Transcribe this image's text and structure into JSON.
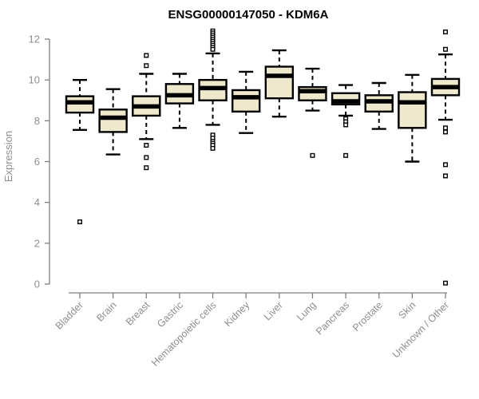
{
  "chart_data": {
    "type": "boxplot",
    "title": "ENSG00000147050 - KDM6A",
    "xlabel": "",
    "ylabel": "Expression",
    "ylim": [
      0,
      12
    ],
    "yticks": [
      0,
      2,
      4,
      6,
      8,
      10,
      12
    ],
    "grid": "off",
    "legend": "none",
    "categories": [
      "Bladder",
      "Brain",
      "Breast",
      "Gastric",
      "Hematopoietic cells",
      "Kidney",
      "Liver",
      "Lung",
      "Pancreas",
      "Prostate",
      "Skin",
      "Unknown / Other"
    ],
    "series": [
      {
        "category": "Bladder",
        "whisker_low": 7.55,
        "q1": 8.4,
        "median": 8.9,
        "q3": 9.2,
        "whisker_high": 10.0,
        "outliers": [
          3.05
        ]
      },
      {
        "category": "Brain",
        "whisker_low": 6.35,
        "q1": 7.45,
        "median": 8.15,
        "q3": 8.55,
        "whisker_high": 9.55,
        "outliers": []
      },
      {
        "category": "Breast",
        "whisker_low": 7.1,
        "q1": 8.25,
        "median": 8.7,
        "q3": 9.2,
        "whisker_high": 10.3,
        "outliers": [
          11.2,
          10.7,
          6.8,
          6.2,
          5.7
        ]
      },
      {
        "category": "Gastric",
        "whisker_low": 7.65,
        "q1": 8.85,
        "median": 9.25,
        "q3": 9.8,
        "whisker_high": 10.3,
        "outliers": []
      },
      {
        "category": "Hematopoietic cells",
        "whisker_low": 7.8,
        "q1": 9.0,
        "median": 9.6,
        "q3": 10.0,
        "whisker_high": 11.3,
        "outliers": [
          12.4,
          12.3,
          12.2,
          12.1,
          12.0,
          11.9,
          11.8,
          11.7,
          11.6,
          11.5,
          7.3,
          7.15,
          7.0,
          6.9,
          6.8,
          6.65
        ]
      },
      {
        "category": "Kidney",
        "whisker_low": 7.4,
        "q1": 8.45,
        "median": 9.15,
        "q3": 9.5,
        "whisker_high": 10.4,
        "outliers": []
      },
      {
        "category": "Liver",
        "whisker_low": 8.2,
        "q1": 9.1,
        "median": 10.2,
        "q3": 10.65,
        "whisker_high": 11.45,
        "outliers": []
      },
      {
        "category": "Lung",
        "whisker_low": 8.5,
        "q1": 9.0,
        "median": 9.45,
        "q3": 9.65,
        "whisker_high": 10.55,
        "outliers": [
          6.3
        ]
      },
      {
        "category": "Pancreas",
        "whisker_low": 8.25,
        "q1": 8.8,
        "median": 8.95,
        "q3": 9.35,
        "whisker_high": 9.75,
        "outliers": [
          8.1,
          7.95,
          7.8,
          6.3
        ]
      },
      {
        "category": "Prostate",
        "whisker_low": 7.6,
        "q1": 8.45,
        "median": 8.95,
        "q3": 9.25,
        "whisker_high": 9.85,
        "outliers": []
      },
      {
        "category": "Skin",
        "whisker_low": 6.0,
        "q1": 7.65,
        "median": 8.9,
        "q3": 9.4,
        "whisker_high": 10.25,
        "outliers": []
      },
      {
        "category": "Unknown / Other",
        "whisker_low": 8.05,
        "q1": 9.25,
        "median": 9.65,
        "q3": 10.05,
        "whisker_high": 11.25,
        "outliers": [
          12.35,
          11.5,
          7.65,
          7.45,
          5.85,
          5.3,
          0.05
        ]
      }
    ],
    "colors": {
      "box_fill": "#EEE8CD",
      "box_border": "#000000",
      "axis": "#7f7f7f",
      "tick_label": "#8e8e8e",
      "title": "#000000",
      "background": "#ffffff"
    }
  }
}
